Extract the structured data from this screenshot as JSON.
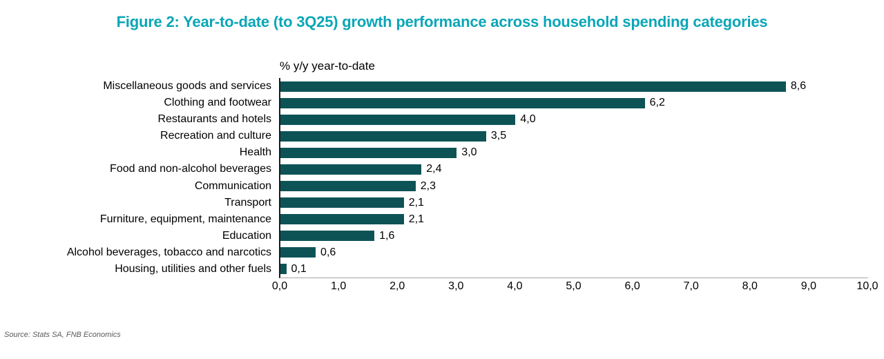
{
  "figure": {
    "title": "Figure 2: Year-to-date (to 3Q25) growth performance across household spending categories",
    "title_color": "#0aa6b7",
    "source": "Source: Stats SA, FNB Economics"
  },
  "chart_data": {
    "type": "bar",
    "orientation": "horizontal",
    "title": "% y/y year-to-date",
    "categories": [
      "Miscellaneous goods and services",
      "Clothing and footwear",
      "Restaurants and hotels",
      "Recreation and culture",
      "Health",
      "Food and non-alcohol beverages",
      "Communication",
      "Transport",
      "Furniture, equipment, maintenance",
      "Education",
      "Alcohol beverages, tobacco and narcotics",
      "Housing, utilities and other fuels"
    ],
    "values": [
      8.6,
      6.2,
      4.0,
      3.5,
      3.0,
      2.4,
      2.3,
      2.1,
      2.1,
      1.6,
      0.6,
      0.1
    ],
    "value_labels": [
      "8,6",
      "6,2",
      "4,0",
      "3,5",
      "3,0",
      "2,4",
      "2,3",
      "2,1",
      "2,1",
      "1,6",
      "0,6",
      "0,1"
    ],
    "x_ticks": [
      "0,0",
      "1,0",
      "2,0",
      "3,0",
      "4,0",
      "5,0",
      "6,0",
      "7,0",
      "8,0",
      "9,0",
      "10,0"
    ],
    "xlim": [
      0,
      10
    ],
    "grid": false,
    "legend": "none",
    "bar_color": "#0d5356",
    "axis_line_color": "#a6a6a6"
  }
}
